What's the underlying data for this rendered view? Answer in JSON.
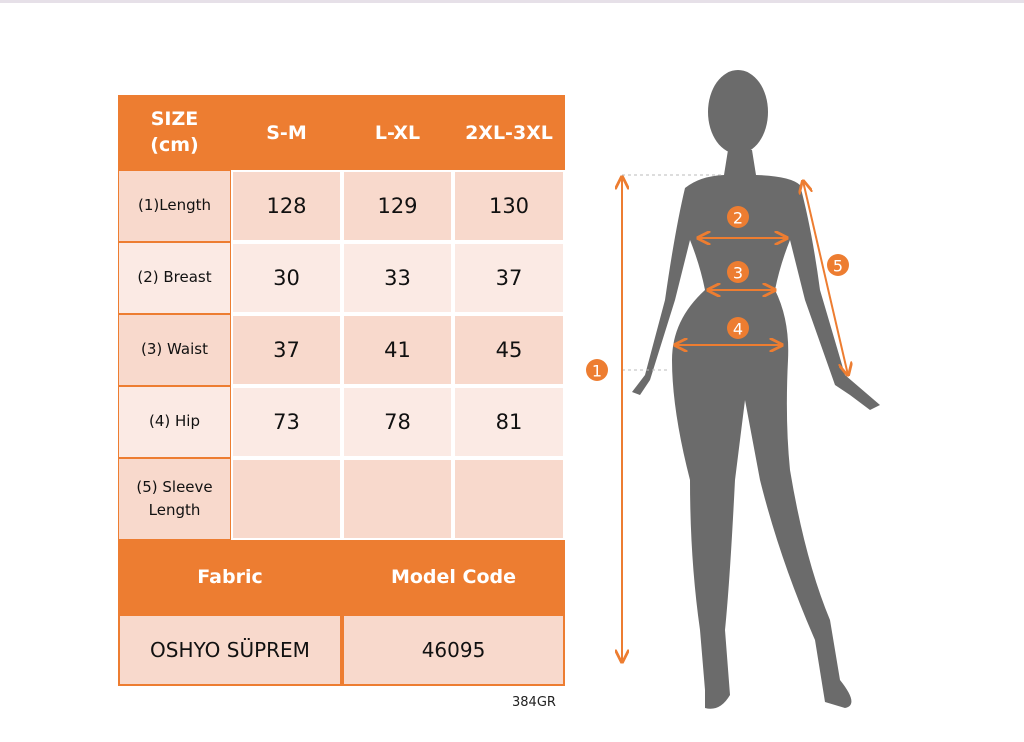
{
  "table": {
    "header": [
      "SIZE (cm)",
      "S-M",
      "L-XL",
      "2XL-3XL"
    ],
    "rows": [
      [
        "(1)Length",
        "128",
        "129",
        "130"
      ],
      [
        "(2) Breast",
        "30",
        "33",
        "37"
      ],
      [
        "(3) Waist",
        "37",
        "41",
        "45"
      ],
      [
        "(4) Hip",
        "73",
        "78",
        "81"
      ],
      [
        "(5) Sleeve Length"
      ]
    ]
  },
  "details": {
    "header": [
      "Fabric",
      "Model Code"
    ],
    "values": [
      "OSHYO SÜPREM",
      "46095"
    ]
  },
  "code": "384GR",
  "figure": {
    "markers": [
      "1",
      "2",
      "3",
      "4",
      "5"
    ]
  }
}
